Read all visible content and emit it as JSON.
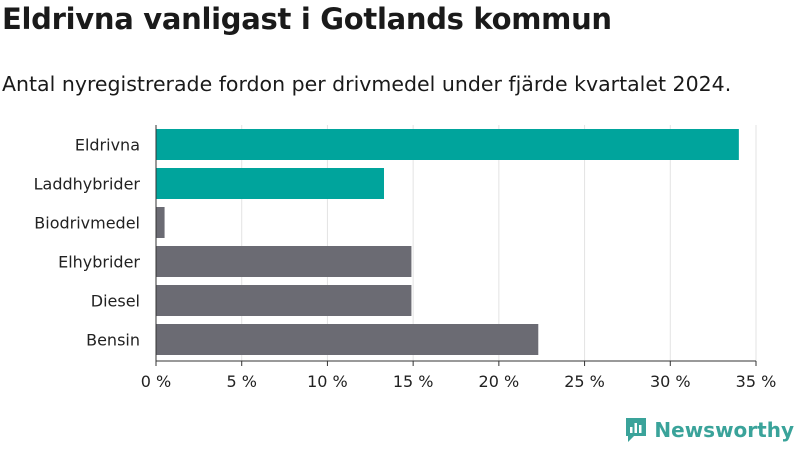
{
  "title": "Eldrivna vanligast i Gotlands kommun",
  "subtitle": "Antal nyregistrerade fordon per drivmedel under fjärde kvartalet 2024.",
  "brand": {
    "name": "Newsworthy",
    "icon": "newsworthy-logo-icon",
    "color": "#3aa39a"
  },
  "chart_data": {
    "type": "bar",
    "orientation": "horizontal",
    "categories": [
      "Eldrivna",
      "Laddhybrider",
      "Biodrivmedel",
      "Elhybrider",
      "Diesel",
      "Bensin"
    ],
    "values": [
      34.0,
      13.3,
      0.5,
      14.9,
      14.9,
      22.3
    ],
    "colors": [
      "#00a49c",
      "#00a49c",
      "#6b6b73",
      "#6b6b73",
      "#6b6b73",
      "#6b6b73"
    ],
    "x_ticks": [
      0,
      5,
      10,
      15,
      20,
      25,
      30,
      35
    ],
    "tick_labels": [
      "0 %",
      "5 %",
      "10 %",
      "15 %",
      "20 %",
      "25 %",
      "30 %",
      "35 %"
    ],
    "xlim": [
      0,
      35
    ],
    "grid": true
  }
}
